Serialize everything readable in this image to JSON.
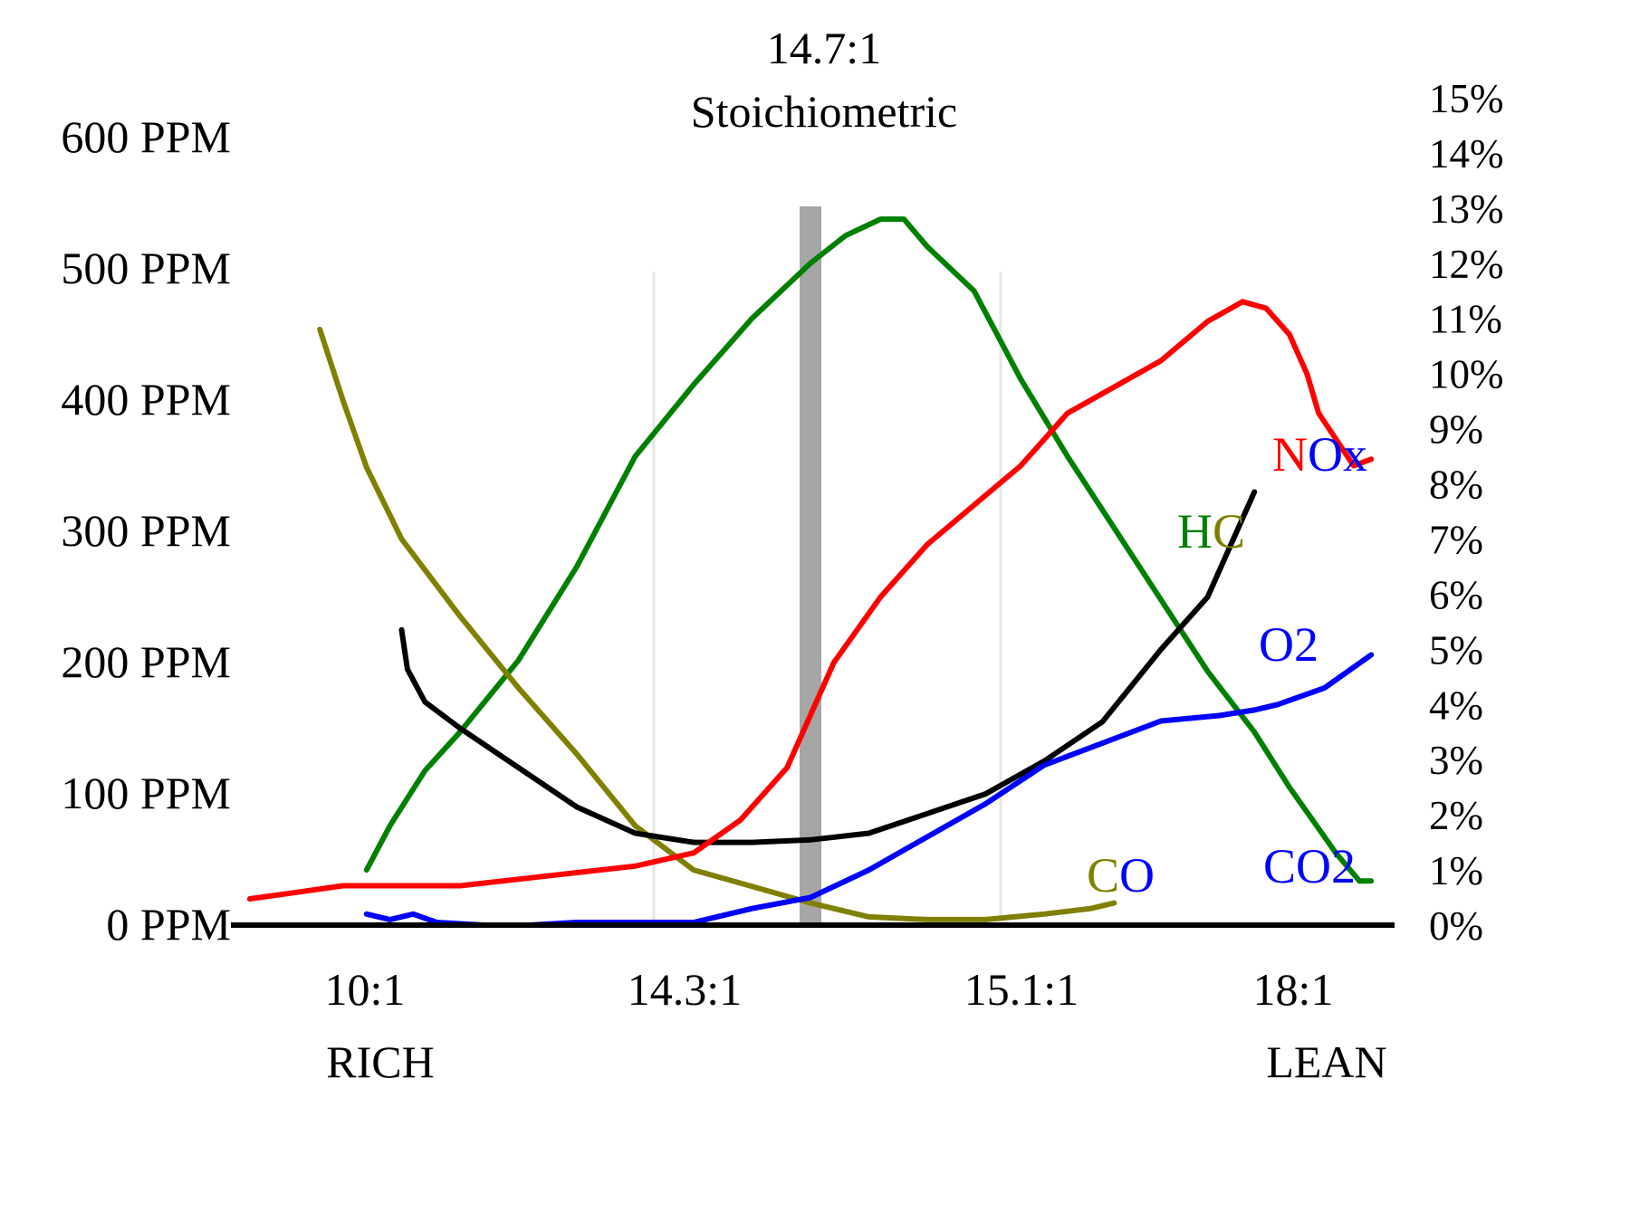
{
  "chart_data": {
    "type": "line",
    "title": "14.7:1",
    "subtitle": "Stoichiometric",
    "x_ticks": [
      "10:1",
      "14.3:1",
      "15.1:1",
      "18:1"
    ],
    "x_end_labels": {
      "left": "RICH",
      "right": "LEAN"
    },
    "y_left": {
      "ticks": [
        "0 PPM",
        "100 PPM",
        "200 PPM",
        "300 PPM",
        "400 PPM",
        "500 PPM",
        "600 PPM"
      ],
      "range": [
        0,
        600
      ],
      "unit": "PPM"
    },
    "y_right": {
      "ticks": [
        "0%",
        "1%",
        "2%",
        "3%",
        "4%",
        "5%",
        "6%",
        "7%",
        "8%",
        "9%",
        "10%",
        "11%",
        "12%",
        "13%",
        "14%",
        "15%"
      ],
      "range": [
        0,
        15
      ],
      "unit": "%"
    },
    "x_range": [
      0,
      100
    ],
    "stoichiometric_marker_x": 50,
    "grid": "faint vertical lines at 14.3:1 and 15.1:1",
    "series": [
      {
        "name": "NOx",
        "axis": "left",
        "color": "#ff0000",
        "label_parts": [
          {
            "text": "N",
            "color": "#ff0000"
          },
          {
            "text": "Ox",
            "color": "#0000ff"
          }
        ],
        "x": [
          2,
          6,
          10,
          15,
          20,
          25,
          30,
          35,
          40,
          44,
          48,
          52,
          56,
          60,
          64,
          68,
          72,
          76,
          80,
          84,
          87,
          89,
          91,
          92.5,
          93.5,
          95,
          96.5,
          98
        ],
        "y": [
          20,
          25,
          30,
          30,
          30,
          35,
          40,
          45,
          55,
          80,
          120,
          200,
          250,
          290,
          320,
          350,
          390,
          410,
          430,
          460,
          475,
          470,
          450,
          420,
          390,
          370,
          350,
          355
        ]
      },
      {
        "name": "HC",
        "axis": "left",
        "color": "#000000",
        "label_parts": [
          {
            "text": "H",
            "color": "#008000"
          },
          {
            "text": "C",
            "color": "#808000"
          }
        ],
        "x": [
          15,
          15.5,
          17,
          20,
          25,
          30,
          35,
          40,
          45,
          50,
          55,
          60,
          65,
          70,
          75,
          80,
          84,
          86.5,
          88
        ],
        "y": [
          225,
          195,
          170,
          150,
          120,
          90,
          70,
          63,
          63,
          65,
          70,
          85,
          100,
          125,
          155,
          210,
          250,
          300,
          330
        ]
      },
      {
        "name": "CO",
        "axis": "right",
        "color": "#808000",
        "label_parts": [
          {
            "text": "C",
            "color": "#808000"
          },
          {
            "text": "O",
            "color": "#0000ff"
          }
        ],
        "x": [
          8,
          10,
          12,
          15,
          20,
          25,
          30,
          35,
          40,
          45,
          50,
          55,
          60,
          65,
          70,
          74,
          76
        ],
        "y": [
          10.8,
          9.5,
          8.3,
          7.0,
          5.6,
          4.3,
          3.1,
          1.8,
          1.0,
          0.7,
          0.4,
          0.15,
          0.1,
          0.1,
          0.2,
          0.3,
          0.4
        ]
      },
      {
        "name": "O2",
        "axis": "right",
        "color": "#0000ff",
        "label_parts": [
          {
            "text": "O2",
            "color": "#0000ff"
          }
        ],
        "x": [
          12,
          14,
          16,
          18,
          22,
          26,
          30,
          35,
          40,
          45,
          50,
          55,
          60,
          65,
          70,
          75,
          80,
          85,
          88,
          90,
          94,
          98
        ],
        "y": [
          0.2,
          0.1,
          0.2,
          0.05,
          0.0,
          0.0,
          0.05,
          0.05,
          0.05,
          0.3,
          0.5,
          1.0,
          1.6,
          2.2,
          2.9,
          3.3,
          3.7,
          3.8,
          3.9,
          4.0,
          4.3,
          4.9
        ]
      },
      {
        "name": "CO2",
        "axis": "right",
        "color": "#008000",
        "label_parts": [
          {
            "text": "CO2",
            "color": "#0000ff"
          }
        ],
        "x": [
          12,
          14,
          17,
          20,
          25,
          30,
          35,
          40,
          45,
          50,
          53,
          56,
          58,
          60,
          64,
          68,
          72,
          76,
          80,
          84,
          88,
          91,
          93,
          95,
          97,
          98
        ],
        "y": [
          1.0,
          1.8,
          2.8,
          3.5,
          4.8,
          6.5,
          8.5,
          9.8,
          11.0,
          12.0,
          12.5,
          12.8,
          12.8,
          12.3,
          11.5,
          9.9,
          8.5,
          7.2,
          5.9,
          4.6,
          3.5,
          2.5,
          1.9,
          1.3,
          0.8,
          0.8
        ]
      }
    ]
  }
}
